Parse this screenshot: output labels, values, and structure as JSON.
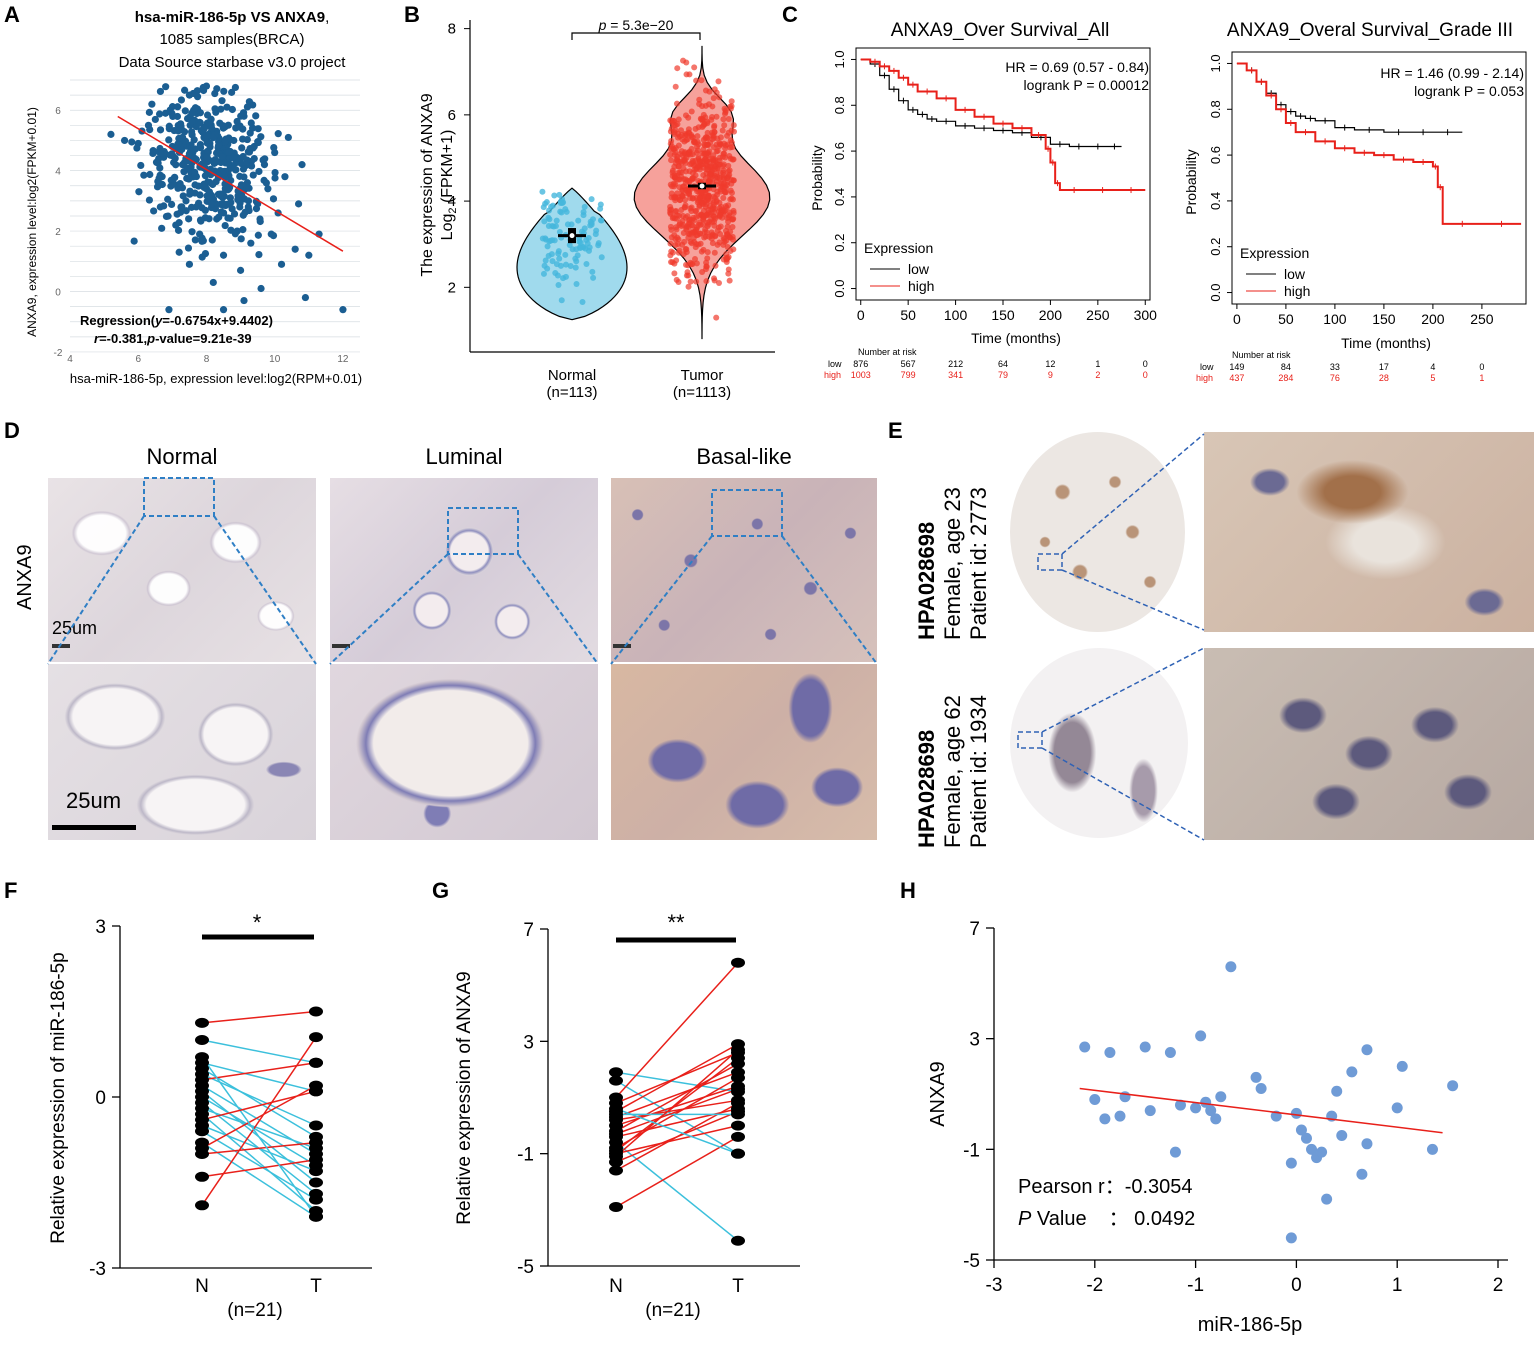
{
  "panels": {
    "A": "A",
    "B": "B",
    "C": "C",
    "D": "D",
    "E": "E",
    "F": "F",
    "G": "G",
    "H": "H"
  },
  "colors": {
    "scatter_blue": "#1b5e92",
    "regression_red": "#e8201a",
    "normal_fill": "#8fd3ea",
    "tumor_fill": "#f4908a",
    "km_low": "#000000",
    "km_high": "#e8201a",
    "h_point": "#6f9bd6",
    "f_decrease": "#3cc0dc",
    "f_increase": "#e8201a"
  },
  "panelA": {
    "title_line1_bold": "hsa-miR-186-5p VS ANXA9",
    "title_line1_rest": ",",
    "title_line2": "1085 samples(BRCA)",
    "title_line3": "Data Source starbase v3.0 project",
    "ylabel": "ANXA9, expression level:log2(FPKM+0.01)",
    "xlabel": "hsa-miR-186-5p, expression level:log2(RPM+0.01)",
    "regression_label": "Regression(",
    "regression_y": "y",
    "regression_eq": "=-0.6754x+9.4402)",
    "r_label": "r",
    "r_text": "=-0.381,",
    "p_label": "p",
    "p_text": "-value=9.21e-39",
    "xticks": [
      "4",
      "6",
      "8",
      "10",
      "12"
    ],
    "yticks": [
      "-2",
      "0",
      "2",
      "4",
      "6"
    ]
  },
  "panelB": {
    "p_prefix": "p",
    "p_text": " = 5.3e−20",
    "ylabel_line1": "The expression of ANXA9",
    "ylabel_line2_pre": "Log",
    "ylabel_line2_sub": "2",
    "ylabel_line2_post": " (FPKM+1)",
    "yticks": [
      "2",
      "4",
      "6",
      "8"
    ],
    "groups": [
      {
        "name": "Normal",
        "n": "(n=113)"
      },
      {
        "name": "Tumor",
        "n": "(n=1113)"
      }
    ]
  },
  "panelC": {
    "plots": [
      {
        "title": "ANXA9_Over Survival_All",
        "hr": "HR = 0.69 (0.57 - 0.84)",
        "logrank": "logrank P = 0.00012",
        "xticks": [
          "0",
          "50",
          "100",
          "150",
          "200",
          "250",
          "300"
        ],
        "risk_low": [
          "876",
          "567",
          "212",
          "64",
          "12",
          "1",
          "0"
        ],
        "risk_high": [
          "1003",
          "799",
          "341",
          "79",
          "9",
          "2",
          "0"
        ]
      },
      {
        "title": "ANXA9_Overal Survival_Grade III",
        "hr": "HR = 1.46 (0.99 - 2.14)",
        "logrank": "logrank P = 0.053",
        "xticks": [
          "0",
          "50",
          "100",
          "150",
          "200",
          "250"
        ],
        "risk_low": [
          "149",
          "84",
          "33",
          "17",
          "4",
          "0"
        ],
        "risk_high": [
          "437",
          "284",
          "76",
          "28",
          "5",
          "1"
        ]
      }
    ],
    "ylabel": "Probability",
    "xlabel": "Time (months)",
    "yticks": [
      "0.0",
      "0.2",
      "0.4",
      "0.6",
      "0.8",
      "1.0"
    ],
    "legend_title": "Expression",
    "legend_low": "low",
    "legend_high": "high",
    "risk_title": "Number at risk",
    "risk_low_label": "low",
    "risk_high_label": "high"
  },
  "panelD": {
    "columns": [
      "Normal",
      "Luminal",
      "Basal-like"
    ],
    "row_label": "ANXA9",
    "scale_small": "25um",
    "scale_large": "25um"
  },
  "panelE": {
    "antibody": "HPA028698",
    "rows": [
      {
        "line2": "Female, age 23",
        "line3": "Patient id: 2773"
      },
      {
        "line2": "Female, age 62",
        "line3": "Patient id: 1934"
      }
    ]
  },
  "panelF": {
    "ylabel": "Relative expression of miR-186-5p",
    "yticks": [
      "-3",
      "0",
      "3"
    ],
    "xticks": [
      "N",
      "T"
    ],
    "n": "(n=21)",
    "sig": "*"
  },
  "panelG": {
    "ylabel": "Relative expression of ANXA9",
    "yticks": [
      "-5",
      "-1",
      "3",
      "7"
    ],
    "xticks": [
      "N",
      "T"
    ],
    "n": "(n=21)",
    "sig": "**"
  },
  "panelH": {
    "ylabel": "ANXA9",
    "xlabel": "miR-186-5p",
    "xticks": [
      "-3",
      "-2",
      "-1",
      "0",
      "1",
      "2"
    ],
    "yticks": [
      "-5",
      "-1",
      "3",
      "7"
    ],
    "pearson_label": "Pearson r：-0.3054",
    "pval_italic": "P",
    "pval_label": " Value",
    "pval_value": "： 0.0492"
  },
  "chart_data": [
    {
      "id": "A",
      "type": "scatter",
      "title": "hsa-miR-186-5p VS ANXA9, 1085 samples(BRCA)",
      "xlim": [
        4,
        12.5
      ],
      "ylim": [
        -2.2,
        7
      ],
      "regression": {
        "slope": -0.6754,
        "intercept": 9.4402,
        "x_range": [
          5.4,
          12
        ]
      },
      "points": [
        [
          5.2,
          5.2
        ],
        [
          5.6,
          5.0
        ],
        [
          6.0,
          4.9
        ],
        [
          6.3,
          5.5
        ],
        [
          6.4,
          6.2
        ],
        [
          6.6,
          4.4
        ],
        [
          6.7,
          3.8
        ],
        [
          6.8,
          5.9
        ],
        [
          7.0,
          4.8
        ],
        [
          7.1,
          2.2
        ],
        [
          7.2,
          1.3
        ],
        [
          7.3,
          4.2
        ],
        [
          7.3,
          5.1
        ],
        [
          7.4,
          3.0
        ],
        [
          7.5,
          6.5
        ],
        [
          7.5,
          0.9
        ],
        [
          7.6,
          4.6
        ],
        [
          7.7,
          2.8
        ],
        [
          7.8,
          5.6
        ],
        [
          7.8,
          1.9
        ],
        [
          7.9,
          4.1
        ],
        [
          8.0,
          3.4
        ],
        [
          8.0,
          6.8
        ],
        [
          8.1,
          4.9
        ],
        [
          8.2,
          0.3
        ],
        [
          8.3,
          2.4
        ],
        [
          8.3,
          5.3
        ],
        [
          8.4,
          4.0
        ],
        [
          8.5,
          1.2
        ],
        [
          8.6,
          4.7
        ],
        [
          8.6,
          6.1
        ],
        [
          8.7,
          3.1
        ],
        [
          8.8,
          5.0
        ],
        [
          8.9,
          2.0
        ],
        [
          9.0,
          4.4
        ],
        [
          9.0,
          0.7
        ],
        [
          9.1,
          5.8
        ],
        [
          9.2,
          3.6
        ],
        [
          9.3,
          1.6
        ],
        [
          9.4,
          4.8
        ],
        [
          9.5,
          2.9
        ],
        [
          9.6,
          0.1
        ],
        [
          9.7,
          4.2
        ],
        [
          9.8,
          3.4
        ],
        [
          9.9,
          1.9
        ],
        [
          10.0,
          4.6
        ],
        [
          10.1,
          2.6
        ],
        [
          10.2,
          0.9
        ],
        [
          10.3,
          3.8
        ],
        [
          10.4,
          5.1
        ],
        [
          10.6,
          1.4
        ],
        [
          10.7,
          2.9
        ],
        [
          10.8,
          4.2
        ],
        [
          11.0,
          1.2
        ],
        [
          11.3,
          1.9
        ],
        [
          12.0,
          -0.6
        ],
        [
          6.9,
          -0.6
        ],
        [
          9.1,
          -0.3
        ],
        [
          8.5,
          -0.6
        ],
        [
          10.9,
          -0.2
        ]
      ],
      "xlabel": "hsa-miR-186-5p, expression level:log2(RPM+0.01)",
      "ylabel": "ANXA9, expression level:log2(FPKM+0.01)"
    },
    {
      "id": "B",
      "type": "violin",
      "categories": [
        "Normal",
        "Tumor"
      ],
      "n": [
        113,
        1113
      ],
      "medians": [
        3.2,
        4.35
      ],
      "ranges": [
        [
          1.25,
          4.3
        ],
        [
          0.8,
          7.6
        ]
      ],
      "ylim": [
        0.5,
        8.2
      ],
      "p_value": "5.3e-20",
      "ylabel": "The expression of ANXA9 Log2 (FPKM+1)"
    },
    {
      "id": "C1",
      "type": "line",
      "title": "ANXA9_Over Survival_All",
      "xlim": [
        -5,
        305
      ],
      "ylim": [
        -0.05,
        1.05
      ],
      "series": [
        {
          "name": "low",
          "x": [
            0,
            10,
            20,
            30,
            40,
            50,
            60,
            70,
            80,
            100,
            120,
            140,
            160,
            180,
            200,
            220,
            240,
            260,
            275
          ],
          "values": [
            1.0,
            0.98,
            0.93,
            0.87,
            0.82,
            0.78,
            0.76,
            0.74,
            0.73,
            0.71,
            0.7,
            0.69,
            0.68,
            0.66,
            0.63,
            0.62,
            0.62,
            0.62,
            0.62
          ]
        },
        {
          "name": "high",
          "x": [
            0,
            10,
            20,
            30,
            40,
            50,
            60,
            80,
            100,
            120,
            140,
            160,
            180,
            195,
            200,
            205,
            210,
            240,
            270,
            300
          ],
          "values": [
            1.0,
            0.99,
            0.97,
            0.95,
            0.92,
            0.89,
            0.86,
            0.83,
            0.78,
            0.75,
            0.72,
            0.7,
            0.67,
            0.61,
            0.55,
            0.46,
            0.43,
            0.43,
            0.43,
            0.43
          ]
        }
      ],
      "xlabel": "Time (months)",
      "ylabel": "Probability"
    },
    {
      "id": "C2",
      "type": "line",
      "title": "ANXA9_Overal Survival_Grade III",
      "xlim": [
        -5,
        295
      ],
      "ylim": [
        -0.05,
        1.05
      ],
      "series": [
        {
          "name": "low",
          "x": [
            0,
            10,
            20,
            30,
            40,
            50,
            60,
            70,
            80,
            100,
            120,
            150,
            180,
            200,
            230
          ],
          "values": [
            1.0,
            0.97,
            0.92,
            0.87,
            0.82,
            0.79,
            0.77,
            0.76,
            0.75,
            0.72,
            0.71,
            0.7,
            0.7,
            0.7,
            0.7
          ]
        },
        {
          "name": "high",
          "x": [
            0,
            10,
            20,
            30,
            40,
            50,
            60,
            80,
            100,
            120,
            140,
            160,
            180,
            200,
            205,
            210,
            250,
            290
          ],
          "values": [
            1.0,
            0.97,
            0.92,
            0.86,
            0.8,
            0.74,
            0.7,
            0.66,
            0.63,
            0.61,
            0.6,
            0.58,
            0.57,
            0.55,
            0.46,
            0.3,
            0.3,
            0.3
          ]
        }
      ],
      "xlabel": "Time (months)",
      "ylabel": "Probability"
    },
    {
      "id": "F",
      "type": "line",
      "ylim": [
        -3,
        3
      ],
      "categories": [
        "N",
        "T"
      ],
      "pairs": [
        [
          1.3,
          1.5
        ],
        [
          1.0,
          0.6
        ],
        [
          0.6,
          0.1
        ],
        [
          0.5,
          -0.7
        ],
        [
          0.4,
          -0.5
        ],
        [
          0.3,
          0.6
        ],
        [
          0.2,
          -1.0
        ],
        [
          0.1,
          -1.5
        ],
        [
          0.0,
          -1.2
        ],
        [
          -0.1,
          -1.7
        ],
        [
          -0.2,
          -0.9
        ],
        [
          -0.3,
          -2.0
        ],
        [
          -0.5,
          -1.3
        ],
        [
          -0.6,
          -1.8
        ],
        [
          -0.8,
          -2.1
        ],
        [
          -0.9,
          0.2
        ],
        [
          -1.0,
          -0.8
        ],
        [
          -1.4,
          -1.1
        ],
        [
          -1.9,
          1.05
        ],
        [
          0.7,
          -2.1
        ],
        [
          -0.4,
          0.1
        ]
      ],
      "ylabel": "Relative expression of miR-186-5p"
    },
    {
      "id": "G",
      "type": "line",
      "ylim": [
        -5,
        7
      ],
      "categories": [
        "N",
        "T"
      ],
      "pairs": [
        [
          1.9,
          1.2
        ],
        [
          1.6,
          -1.0
        ],
        [
          1.0,
          5.8
        ],
        [
          0.8,
          2.6
        ],
        [
          0.5,
          2.9
        ],
        [
          0.3,
          1.9
        ],
        [
          0.2,
          0.9
        ],
        [
          0.0,
          1.4
        ],
        [
          -0.2,
          2.2
        ],
        [
          -0.4,
          0.6
        ],
        [
          -0.6,
          -4.1
        ],
        [
          -0.8,
          1.7
        ],
        [
          -1.0,
          0.0
        ],
        [
          -1.1,
          2.7
        ],
        [
          -1.3,
          0.5
        ],
        [
          -1.6,
          0.8
        ],
        [
          -2.9,
          -0.4
        ],
        [
          0.4,
          0.4
        ],
        [
          -0.3,
          1.3
        ],
        [
          -0.9,
          2.4
        ],
        [
          0.6,
          -1.0
        ]
      ],
      "ylabel": "Relative expression of ANXA9"
    },
    {
      "id": "H",
      "type": "scatter",
      "xlim": [
        -3,
        2
      ],
      "ylim": [
        -5,
        7
      ],
      "regression": {
        "x_range": [
          -2.15,
          1.45
        ],
        "y_range": [
          1.2,
          -0.4
        ]
      },
      "points": [
        [
          -2.1,
          2.7
        ],
        [
          -2.0,
          0.8
        ],
        [
          -1.9,
          0.1
        ],
        [
          -1.85,
          2.5
        ],
        [
          -1.75,
          0.2
        ],
        [
          -1.7,
          0.9
        ],
        [
          -1.5,
          2.7
        ],
        [
          -1.45,
          0.4
        ],
        [
          -1.25,
          2.5
        ],
        [
          -1.2,
          -1.1
        ],
        [
          -1.15,
          0.6
        ],
        [
          -1.0,
          0.5
        ],
        [
          -0.95,
          3.1
        ],
        [
          -0.9,
          0.7
        ],
        [
          -0.85,
          0.4
        ],
        [
          -0.8,
          0.1
        ],
        [
          -0.75,
          0.9
        ],
        [
          -0.65,
          5.6
        ],
        [
          -0.4,
          1.6
        ],
        [
          -0.35,
          1.2
        ],
        [
          -0.2,
          0.2
        ],
        [
          -0.05,
          -1.5
        ],
        [
          -0.05,
          -4.2
        ],
        [
          0.0,
          0.3
        ],
        [
          0.05,
          -0.3
        ],
        [
          0.1,
          -0.6
        ],
        [
          0.15,
          -1.0
        ],
        [
          0.2,
          -1.3
        ],
        [
          0.25,
          -1.1
        ],
        [
          0.3,
          -2.8
        ],
        [
          0.35,
          0.2
        ],
        [
          0.4,
          1.1
        ],
        [
          0.45,
          -0.5
        ],
        [
          0.55,
          1.8
        ],
        [
          0.65,
          -1.9
        ],
        [
          0.7,
          2.6
        ],
        [
          0.7,
          -0.8
        ],
        [
          1.0,
          0.5
        ],
        [
          1.05,
          2.0
        ],
        [
          1.35,
          -1.0
        ],
        [
          1.55,
          1.3
        ]
      ],
      "pearson_r": -0.3054,
      "p_value": 0.0492,
      "xlabel": "miR-186-5p",
      "ylabel": "ANXA9"
    }
  ]
}
